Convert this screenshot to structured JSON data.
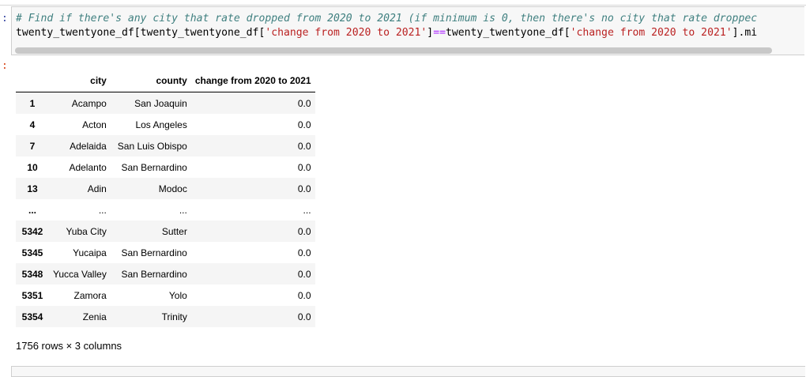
{
  "input_prompt": ":",
  "output_prompt": ":",
  "code": {
    "comment": "# Find if there's any city that rate dropped from 2020 to 2021 (if minimum is 0, then there's no city that rate droppec",
    "line2_a": "twenty_twentyone_df[twenty_twentyone_df[",
    "line2_str1": "'change from 2020 to 2021'",
    "line2_b": "]",
    "line2_op": "==",
    "line2_c": "twenty_twentyone_df[",
    "line2_str2": "'change from 2020 to 2021'",
    "line2_d": "].mi"
  },
  "table": {
    "columns": [
      "",
      "city",
      "county",
      "change from 2020 to 2021"
    ],
    "rows": [
      {
        "idx": "1",
        "city": "Acampo",
        "county": "San Joaquin",
        "change": "0.0"
      },
      {
        "idx": "4",
        "city": "Acton",
        "county": "Los Angeles",
        "change": "0.0"
      },
      {
        "idx": "7",
        "city": "Adelaida",
        "county": "San Luis Obispo",
        "change": "0.0"
      },
      {
        "idx": "10",
        "city": "Adelanto",
        "county": "San Bernardino",
        "change": "0.0"
      },
      {
        "idx": "13",
        "city": "Adin",
        "county": "Modoc",
        "change": "0.0"
      },
      {
        "idx": "...",
        "city": "...",
        "county": "...",
        "change": "..."
      },
      {
        "idx": "5342",
        "city": "Yuba City",
        "county": "Sutter",
        "change": "0.0"
      },
      {
        "idx": "5345",
        "city": "Yucaipa",
        "county": "San Bernardino",
        "change": "0.0"
      },
      {
        "idx": "5348",
        "city": "Yucca Valley",
        "county": "San Bernardino",
        "change": "0.0"
      },
      {
        "idx": "5351",
        "city": "Zamora",
        "county": "Yolo",
        "change": "0.0"
      },
      {
        "idx": "5354",
        "city": "Zenia",
        "county": "Trinity",
        "change": "0.0"
      }
    ]
  },
  "footer": "1756 rows × 3 columns"
}
